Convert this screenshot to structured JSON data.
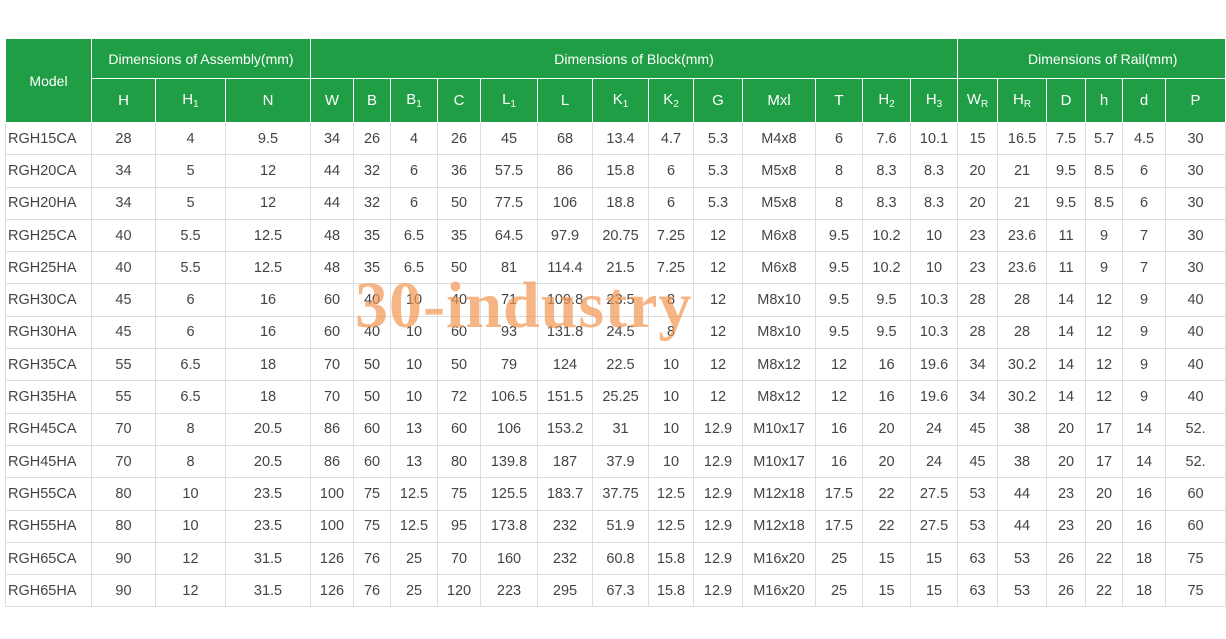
{
  "table": {
    "model_header": "Model",
    "groups": [
      "Dimensions of Assembly(mm)",
      "Dimensions of Block(mm)",
      "Dimensions of Rail(mm)"
    ],
    "columns": [
      {
        "text": "H"
      },
      {
        "text": "H",
        "sub": "1"
      },
      {
        "text": "N"
      },
      {
        "text": "W"
      },
      {
        "text": "B"
      },
      {
        "text": "B",
        "sub": "1"
      },
      {
        "text": "C"
      },
      {
        "text": "L",
        "sub": "1"
      },
      {
        "text": "L"
      },
      {
        "text": "K",
        "sub": "1"
      },
      {
        "text": "K",
        "sub": "2"
      },
      {
        "text": "G"
      },
      {
        "text": "Mxl"
      },
      {
        "text": "T"
      },
      {
        "text": "H",
        "sub": "2"
      },
      {
        "text": "H",
        "sub": "3"
      },
      {
        "text": "W",
        "sub": "R"
      },
      {
        "text": "H",
        "sub": "R"
      },
      {
        "text": "D"
      },
      {
        "text": "h"
      },
      {
        "text": "d"
      },
      {
        "text": "P"
      }
    ],
    "rows": [
      [
        "RGH15CA",
        "28",
        "4",
        "9.5",
        "34",
        "26",
        "4",
        "26",
        "45",
        "68",
        "13.4",
        "4.7",
        "5.3",
        "M4x8",
        "6",
        "7.6",
        "10.1",
        "15",
        "16.5",
        "7.5",
        "5.7",
        "4.5",
        "30"
      ],
      [
        "RGH20CA",
        "34",
        "5",
        "12",
        "44",
        "32",
        "6",
        "36",
        "57.5",
        "86",
        "15.8",
        "6",
        "5.3",
        "M5x8",
        "8",
        "8.3",
        "8.3",
        "20",
        "21",
        "9.5",
        "8.5",
        "6",
        "30"
      ],
      [
        "RGH20HA",
        "34",
        "5",
        "12",
        "44",
        "32",
        "6",
        "50",
        "77.5",
        "106",
        "18.8",
        "6",
        "5.3",
        "M5x8",
        "8",
        "8.3",
        "8.3",
        "20",
        "21",
        "9.5",
        "8.5",
        "6",
        "30"
      ],
      [
        "RGH25CA",
        "40",
        "5.5",
        "12.5",
        "48",
        "35",
        "6.5",
        "35",
        "64.5",
        "97.9",
        "20.75",
        "7.25",
        "12",
        "M6x8",
        "9.5",
        "10.2",
        "10",
        "23",
        "23.6",
        "11",
        "9",
        "7",
        "30"
      ],
      [
        "RGH25HA",
        "40",
        "5.5",
        "12.5",
        "48",
        "35",
        "6.5",
        "50",
        "81",
        "114.4",
        "21.5",
        "7.25",
        "12",
        "M6x8",
        "9.5",
        "10.2",
        "10",
        "23",
        "23.6",
        "11",
        "9",
        "7",
        "30"
      ],
      [
        "RGH30CA",
        "45",
        "6",
        "16",
        "60",
        "40",
        "10",
        "40",
        "71",
        "109.8",
        "23.5",
        "8",
        "12",
        "M8x10",
        "9.5",
        "9.5",
        "10.3",
        "28",
        "28",
        "14",
        "12",
        "9",
        "40"
      ],
      [
        "RGH30HA",
        "45",
        "6",
        "16",
        "60",
        "40",
        "10",
        "60",
        "93",
        "131.8",
        "24.5",
        "8",
        "12",
        "M8x10",
        "9.5",
        "9.5",
        "10.3",
        "28",
        "28",
        "14",
        "12",
        "9",
        "40"
      ],
      [
        "RGH35CA",
        "55",
        "6.5",
        "18",
        "70",
        "50",
        "10",
        "50",
        "79",
        "124",
        "22.5",
        "10",
        "12",
        "M8x12",
        "12",
        "16",
        "19.6",
        "34",
        "30.2",
        "14",
        "12",
        "9",
        "40"
      ],
      [
        "RGH35HA",
        "55",
        "6.5",
        "18",
        "70",
        "50",
        "10",
        "72",
        "106.5",
        "151.5",
        "25.25",
        "10",
        "12",
        "M8x12",
        "12",
        "16",
        "19.6",
        "34",
        "30.2",
        "14",
        "12",
        "9",
        "40"
      ],
      [
        "RGH45CA",
        "70",
        "8",
        "20.5",
        "86",
        "60",
        "13",
        "60",
        "106",
        "153.2",
        "31",
        "10",
        "12.9",
        "M10x17",
        "16",
        "20",
        "24",
        "45",
        "38",
        "20",
        "17",
        "14",
        "52."
      ],
      [
        "RGH45HA",
        "70",
        "8",
        "20.5",
        "86",
        "60",
        "13",
        "80",
        "139.8",
        "187",
        "37.9",
        "10",
        "12.9",
        "M10x17",
        "16",
        "20",
        "24",
        "45",
        "38",
        "20",
        "17",
        "14",
        "52."
      ],
      [
        "RGH55CA",
        "80",
        "10",
        "23.5",
        "100",
        "75",
        "12.5",
        "75",
        "125.5",
        "183.7",
        "37.75",
        "12.5",
        "12.9",
        "M12x18",
        "17.5",
        "22",
        "27.5",
        "53",
        "44",
        "23",
        "20",
        "16",
        "60"
      ],
      [
        "RGH55HA",
        "80",
        "10",
        "23.5",
        "100",
        "75",
        "12.5",
        "95",
        "173.8",
        "232",
        "51.9",
        "12.5",
        "12.9",
        "M12x18",
        "17.5",
        "22",
        "27.5",
        "53",
        "44",
        "23",
        "20",
        "16",
        "60"
      ],
      [
        "RGH65CA",
        "90",
        "12",
        "31.5",
        "126",
        "76",
        "25",
        "70",
        "160",
        "232",
        "60.8",
        "15.8",
        "12.9",
        "M16x20",
        "25",
        "15",
        "15",
        "63",
        "53",
        "26",
        "22",
        "18",
        "75"
      ],
      [
        "RGH65HA",
        "90",
        "12",
        "31.5",
        "126",
        "76",
        "25",
        "120",
        "223",
        "295",
        "67.3",
        "15.8",
        "12.9",
        "M16x20",
        "25",
        "15",
        "15",
        "63",
        "53",
        "26",
        "22",
        "18",
        "75"
      ]
    ]
  },
  "watermark": "30-industry"
}
